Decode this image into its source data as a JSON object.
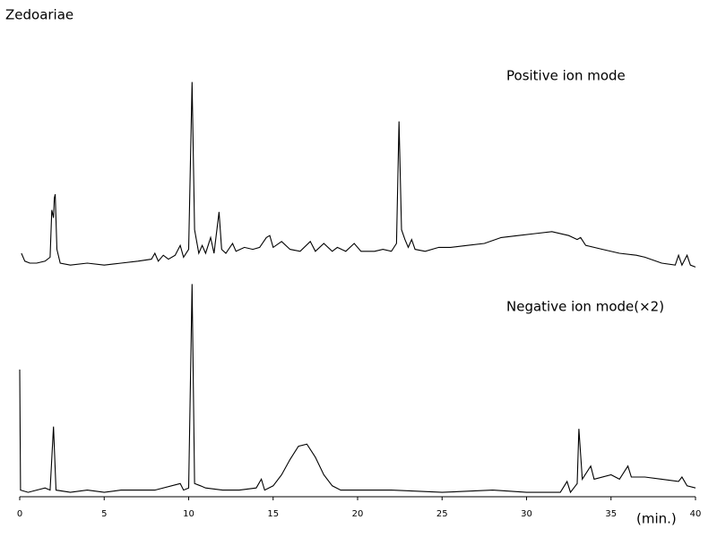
{
  "chart_data": [
    {
      "type": "line",
      "title": "Zedoariae",
      "annotation": "Positive ion mode",
      "xlim": [
        0,
        40
      ],
      "ylim": [
        0,
        100
      ],
      "color": "#000000",
      "x": [
        0.1,
        0.3,
        0.6,
        1.0,
        1.5,
        1.8,
        1.9,
        2.0,
        2.05,
        2.1,
        2.2,
        2.4,
        3,
        4,
        5,
        6,
        7,
        7.8,
        8.0,
        8.2,
        8.5,
        8.8,
        9.2,
        9.5,
        9.7,
        10.0,
        10.2,
        10.35,
        10.6,
        10.8,
        11.0,
        11.3,
        11.5,
        11.8,
        11.95,
        12.2,
        12.6,
        12.8,
        13.3,
        13.8,
        14.2,
        14.6,
        14.8,
        15.0,
        15.5,
        16,
        16.6,
        17.2,
        17.5,
        18,
        18.5,
        18.8,
        19.3,
        19.8,
        20.2,
        21,
        21.5,
        22,
        22.3,
        22.45,
        22.6,
        22.8,
        23.0,
        23.2,
        23.4,
        24,
        24.8,
        25.5,
        26.5,
        27.5,
        28.5,
        29.5,
        30.5,
        31.5,
        32.5,
        33,
        33.2,
        33.5,
        34.5,
        35.5,
        36.5,
        37,
        38,
        38.8,
        39.0,
        39.2,
        39.5,
        39.7,
        40
      ],
      "values": [
        10,
        6,
        5,
        5,
        6,
        8,
        32,
        28,
        38,
        40,
        12,
        5,
        4,
        5,
        4,
        5,
        6,
        7,
        10,
        6,
        9,
        7,
        9,
        14,
        8,
        12,
        97,
        22,
        10,
        14,
        10,
        18,
        10,
        31,
        12,
        10,
        15,
        11,
        13,
        12,
        13,
        18,
        19,
        13,
        16,
        12,
        11,
        16,
        11,
        15,
        11,
        13,
        11,
        15,
        11,
        11,
        12,
        11,
        15,
        77,
        22,
        17,
        13,
        17,
        12,
        11,
        13,
        13,
        14,
        15,
        18,
        19,
        20,
        21,
        19,
        17,
        18,
        14,
        12,
        10,
        9,
        8,
        5,
        4,
        9,
        4,
        9,
        4,
        3
      ]
    },
    {
      "type": "line",
      "annotation": "Negative ion mode(×2)",
      "xlabel": "(min.)",
      "xlim": [
        0,
        40
      ],
      "ylim": [
        0,
        100
      ],
      "xticks": [
        0,
        5,
        10,
        15,
        20,
        25,
        30,
        35,
        40
      ],
      "color": "#000000",
      "x": [
        0,
        0.05,
        0.5,
        1,
        1.5,
        1.8,
        2.0,
        2.15,
        3,
        4,
        5,
        6,
        7,
        8,
        9.5,
        9.7,
        10.0,
        10.2,
        10.35,
        10.7,
        11,
        12,
        13,
        14,
        14.3,
        14.5,
        15,
        15.5,
        16,
        16.5,
        17,
        17.5,
        18,
        18.5,
        19,
        20,
        22,
        25,
        28,
        30,
        32,
        32.4,
        32.6,
        33,
        33.1,
        33.3,
        33.8,
        34,
        35,
        35.5,
        36,
        36.2,
        37,
        38,
        39,
        39.2,
        39.5,
        40
      ],
      "values": [
        58,
        3,
        2,
        3,
        4,
        3,
        32,
        3,
        2,
        3,
        2,
        3,
        3,
        3,
        6,
        3,
        4,
        97,
        6,
        5,
        4,
        3,
        3,
        4,
        8,
        3,
        5,
        10,
        17,
        23,
        24,
        18,
        10,
        5,
        3,
        3,
        3,
        2,
        3,
        2,
        2,
        7,
        2,
        6,
        31,
        8,
        14,
        8,
        10,
        8,
        14,
        9,
        9,
        8,
        7,
        9,
        5,
        4
      ]
    }
  ]
}
